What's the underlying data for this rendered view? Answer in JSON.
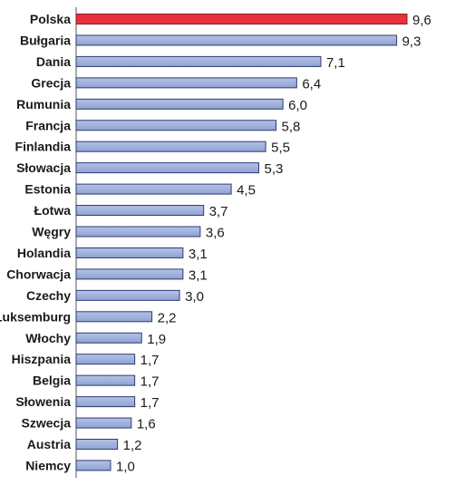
{
  "chart_data": {
    "type": "bar",
    "orientation": "horizontal",
    "title": "",
    "xlabel": "",
    "ylabel": "",
    "categories": [
      "Polska",
      "Bułgaria",
      "Dania",
      "Grecja",
      "Rumunia",
      "Francja",
      "Finlandia",
      "Słowacja",
      "Estonia",
      "Łotwa",
      "Węgry",
      "Holandia",
      "Chorwacja",
      "Czechy",
      "Luksemburg",
      "Włochy",
      "Hiszpania",
      "Belgia",
      "Słowenia",
      "Szwecja",
      "Austria",
      "Niemcy"
    ],
    "values": [
      9.6,
      9.3,
      7.1,
      6.4,
      6.0,
      5.8,
      5.5,
      5.3,
      4.5,
      3.7,
      3.6,
      3.1,
      3.1,
      3.0,
      2.2,
      1.9,
      1.7,
      1.7,
      1.7,
      1.6,
      1.2,
      1.0
    ],
    "value_labels": [
      "9,6",
      "9,3",
      "7,1",
      "6,4",
      "6,0",
      "5,8",
      "5,5",
      "5,3",
      "4,5",
      "3,7",
      "3,6",
      "3,1",
      "3,1",
      "3,0",
      "2,2",
      "1,9",
      "1,7",
      "1,7",
      "1,7",
      "1,6",
      "1,2",
      "1,0"
    ],
    "xlim": [
      0,
      9.6
    ],
    "grid": false,
    "colors": {
      "highlight": "#e8313b",
      "highlight_stroke": "#8a1a1f",
      "bar": "#8ea2d4",
      "bar_light": "#b4c2e6",
      "bar_stroke": "#2e3a6e"
    },
    "highlight_index": 0
  }
}
